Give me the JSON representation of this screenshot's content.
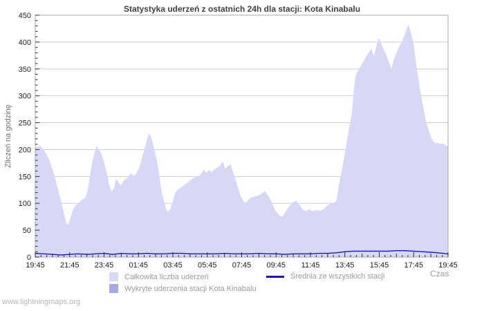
{
  "footer": {
    "watermark": "www.lightningmaps.org"
  },
  "chart_data": {
    "type": "area",
    "title": "Statystyka uderzeń z ostatnich 24h dla stacji: Kota Kinabalu",
    "xlabel": "Czas",
    "ylabel": "Zliczeń na godzinę",
    "ylim": [
      0,
      450
    ],
    "y_tick_step": 50,
    "y_minor_step": 10,
    "x_range_hours": [
      0,
      24
    ],
    "x_tick_labels": [
      "19:45",
      "21:45",
      "23:45",
      "01:45",
      "03:45",
      "05:45",
      "07:45",
      "09:45",
      "11:45",
      "13:45",
      "15:45",
      "17:45",
      "19:45"
    ],
    "x_minor_step_minutes": 20,
    "grid": "horizontal",
    "legend_position": "bottom",
    "frame_color": "#a8a8a8",
    "grid_color": "#cdcdcd",
    "series": [
      {
        "name": "Całkowita liczba uderzeń",
        "type": "area",
        "color": "#d7d7f6",
        "points": [
          [
            0,
            204
          ],
          [
            0.15,
            205
          ],
          [
            0.3,
            207
          ],
          [
            0.45,
            201
          ],
          [
            0.6,
            194
          ],
          [
            0.75,
            186
          ],
          [
            0.9,
            173
          ],
          [
            1.05,
            158
          ],
          [
            1.2,
            142
          ],
          [
            1.35,
            122
          ],
          [
            1.5,
            104
          ],
          [
            1.65,
            84
          ],
          [
            1.8,
            64
          ],
          [
            1.9,
            60
          ],
          [
            2.0,
            68
          ],
          [
            2.15,
            84
          ],
          [
            2.3,
            94
          ],
          [
            2.5,
            100
          ],
          [
            2.7,
            106
          ],
          [
            2.9,
            110
          ],
          [
            3.05,
            124
          ],
          [
            3.2,
            156
          ],
          [
            3.35,
            182
          ],
          [
            3.55,
            207
          ],
          [
            3.7,
            200
          ],
          [
            3.85,
            192
          ],
          [
            4.0,
            176
          ],
          [
            4.15,
            158
          ],
          [
            4.3,
            134
          ],
          [
            4.45,
            121
          ],
          [
            4.6,
            130
          ],
          [
            4.7,
            146
          ],
          [
            4.85,
            138
          ],
          [
            5.0,
            133
          ],
          [
            5.15,
            143
          ],
          [
            5.35,
            147
          ],
          [
            5.55,
            156
          ],
          [
            5.7,
            151
          ],
          [
            5.85,
            154
          ],
          [
            6.05,
            166
          ],
          [
            6.25,
            190
          ],
          [
            6.45,
            212
          ],
          [
            6.6,
            230
          ],
          [
            6.75,
            223
          ],
          [
            6.9,
            202
          ],
          [
            7.05,
            181
          ],
          [
            7.2,
            156
          ],
          [
            7.35,
            121
          ],
          [
            7.55,
            95
          ],
          [
            7.7,
            84
          ],
          [
            7.85,
            89
          ],
          [
            8.0,
            104
          ],
          [
            8.15,
            121
          ],
          [
            8.35,
            127
          ],
          [
            8.55,
            131
          ],
          [
            8.75,
            136
          ],
          [
            9.0,
            142
          ],
          [
            9.2,
            147
          ],
          [
            9.4,
            150
          ],
          [
            9.6,
            153
          ],
          [
            9.8,
            162
          ],
          [
            9.95,
            157
          ],
          [
            10.1,
            162
          ],
          [
            10.25,
            158
          ],
          [
            10.4,
            163
          ],
          [
            10.6,
            166
          ],
          [
            10.75,
            171
          ],
          [
            10.9,
            178
          ],
          [
            11.05,
            164
          ],
          [
            11.2,
            169
          ],
          [
            11.35,
            173
          ],
          [
            11.5,
            158
          ],
          [
            11.7,
            138
          ],
          [
            11.9,
            117
          ],
          [
            12.1,
            104
          ],
          [
            12.25,
            101
          ],
          [
            12.4,
            107
          ],
          [
            12.55,
            111
          ],
          [
            12.75,
            113
          ],
          [
            12.95,
            114
          ],
          [
            13.15,
            118
          ],
          [
            13.35,
            123
          ],
          [
            13.55,
            114
          ],
          [
            13.75,
            102
          ],
          [
            13.95,
            87
          ],
          [
            14.15,
            79
          ],
          [
            14.35,
            75
          ],
          [
            14.55,
            84
          ],
          [
            14.75,
            94
          ],
          [
            14.95,
            101
          ],
          [
            15.15,
            105
          ],
          [
            15.35,
            97
          ],
          [
            15.55,
            88
          ],
          [
            15.75,
            86
          ],
          [
            15.95,
            89
          ],
          [
            16.15,
            85
          ],
          [
            16.35,
            88
          ],
          [
            16.55,
            86
          ],
          [
            16.75,
            89
          ],
          [
            16.95,
            95
          ],
          [
            17.15,
            99
          ],
          [
            17.35,
            101
          ],
          [
            17.5,
            104
          ],
          [
            17.65,
            133
          ],
          [
            17.8,
            158
          ],
          [
            17.95,
            183
          ],
          [
            18.1,
            212
          ],
          [
            18.25,
            240
          ],
          [
            18.4,
            266
          ],
          [
            18.55,
            318
          ],
          [
            18.65,
            340
          ],
          [
            18.8,
            349
          ],
          [
            18.95,
            357
          ],
          [
            19.1,
            365
          ],
          [
            19.25,
            373
          ],
          [
            19.4,
            381
          ],
          [
            19.55,
            387
          ],
          [
            19.7,
            374
          ],
          [
            19.85,
            394
          ],
          [
            19.98,
            408
          ],
          [
            20.1,
            398
          ],
          [
            20.25,
            386
          ],
          [
            20.4,
            377
          ],
          [
            20.55,
            364
          ],
          [
            20.72,
            350
          ],
          [
            20.85,
            368
          ],
          [
            21.0,
            380
          ],
          [
            21.15,
            391
          ],
          [
            21.3,
            399
          ],
          [
            21.45,
            411
          ],
          [
            21.6,
            424
          ],
          [
            21.7,
            433
          ],
          [
            21.85,
            416
          ],
          [
            22.0,
            396
          ],
          [
            22.1,
            371
          ],
          [
            22.2,
            347
          ],
          [
            22.35,
            316
          ],
          [
            22.5,
            289
          ],
          [
            22.65,
            263
          ],
          [
            22.8,
            243
          ],
          [
            22.95,
            228
          ],
          [
            23.1,
            217
          ],
          [
            23.25,
            212
          ],
          [
            23.4,
            213
          ],
          [
            23.55,
            210
          ],
          [
            23.7,
            212
          ],
          [
            23.85,
            208
          ],
          [
            24,
            206
          ]
        ]
      },
      {
        "name": "Wykryte uderzenia stacji Kota Kinabalu",
        "type": "area",
        "color": "#a7a7e9",
        "points": [
          [
            0,
            0
          ],
          [
            24,
            0
          ]
        ]
      },
      {
        "name": "Średnia ze wszystkich stacji",
        "type": "line",
        "color": "#1616cb",
        "points": [
          [
            0,
            7
          ],
          [
            0.5,
            6
          ],
          [
            1,
            5
          ],
          [
            1.5,
            4
          ],
          [
            2,
            5
          ],
          [
            2.5,
            6
          ],
          [
            3,
            5
          ],
          [
            3.5,
            6
          ],
          [
            4,
            7
          ],
          [
            4.5,
            5
          ],
          [
            5,
            7
          ],
          [
            5.5,
            6
          ],
          [
            6,
            6
          ],
          [
            6.5,
            7
          ],
          [
            7,
            6
          ],
          [
            7.5,
            6
          ],
          [
            8,
            7
          ],
          [
            8.5,
            7
          ],
          [
            9,
            6
          ],
          [
            9.5,
            6
          ],
          [
            10,
            6
          ],
          [
            10.5,
            6
          ],
          [
            11,
            7
          ],
          [
            11.5,
            6
          ],
          [
            12,
            6
          ],
          [
            12.5,
            6
          ],
          [
            13,
            7
          ],
          [
            13.5,
            6
          ],
          [
            14,
            6
          ],
          [
            14.5,
            5
          ],
          [
            15,
            6
          ],
          [
            15.5,
            6
          ],
          [
            16,
            6
          ],
          [
            16.5,
            7
          ],
          [
            17,
            7
          ],
          [
            17.5,
            8
          ],
          [
            18,
            10
          ],
          [
            18.5,
            11
          ],
          [
            19,
            11
          ],
          [
            19.5,
            11
          ],
          [
            20,
            11
          ],
          [
            20.5,
            11
          ],
          [
            21,
            12
          ],
          [
            21.5,
            12
          ],
          [
            22,
            11
          ],
          [
            22.5,
            10
          ],
          [
            23,
            9
          ],
          [
            23.4,
            8
          ],
          [
            23.7,
            7
          ],
          [
            24,
            6
          ]
        ]
      }
    ]
  }
}
